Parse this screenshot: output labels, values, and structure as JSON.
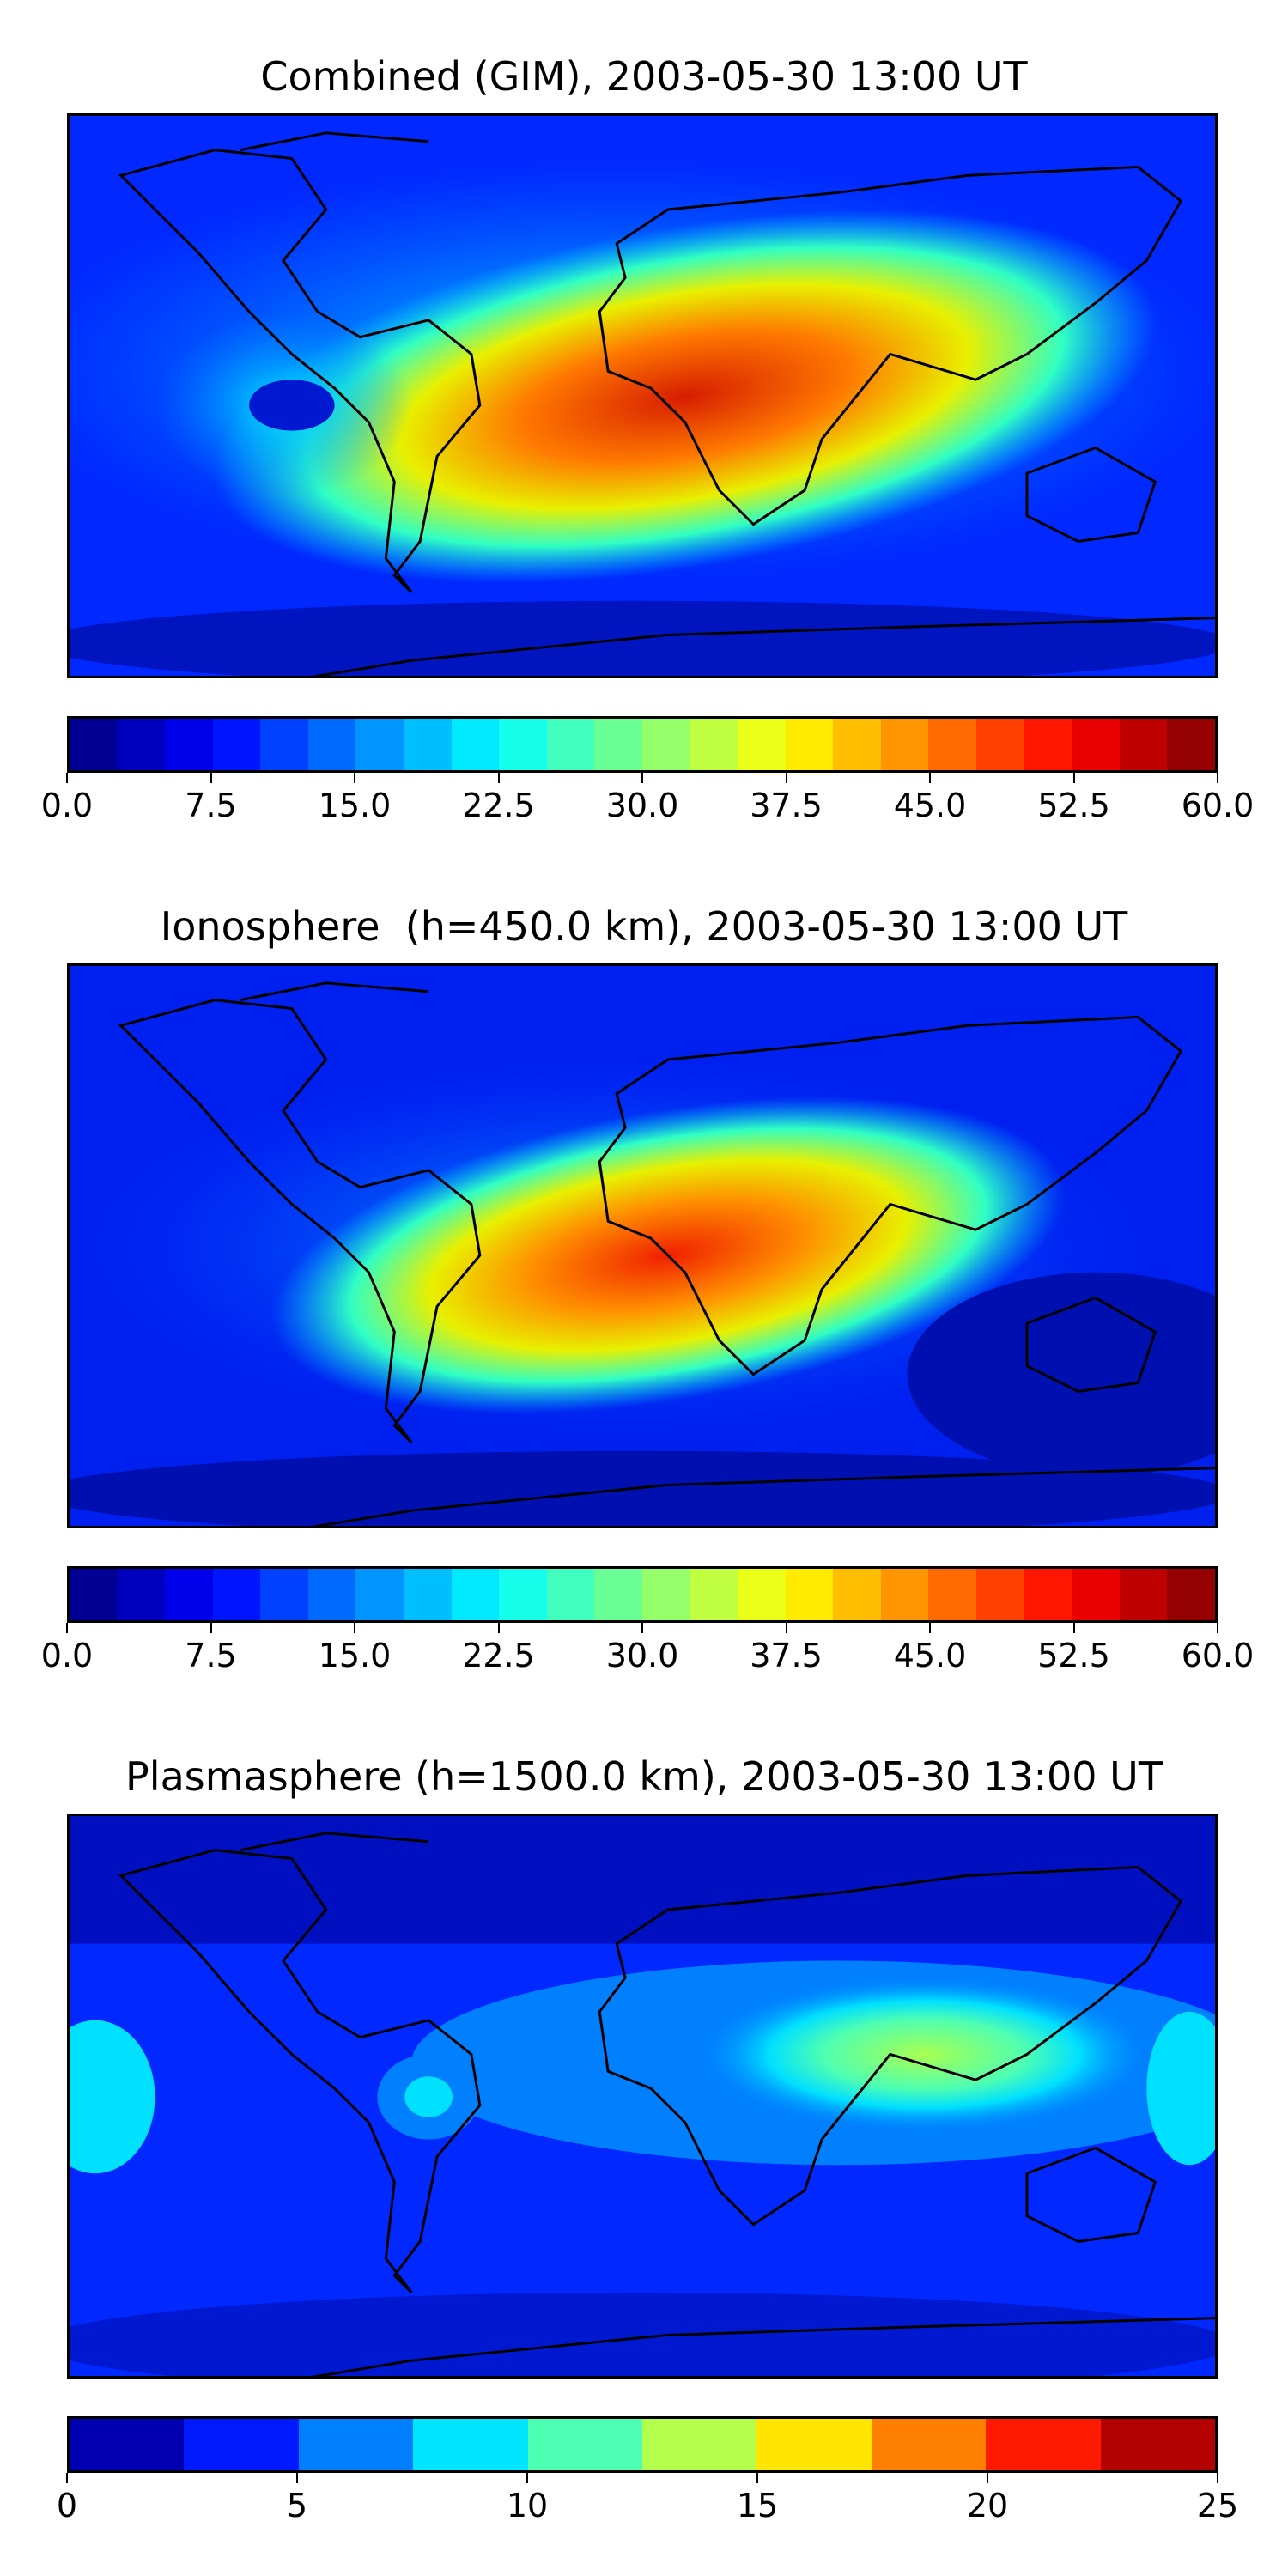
{
  "panels": [
    {
      "title": "Combined (GIM), 2003-05-30 13:00 UT",
      "colorbar": {
        "min": 0,
        "max": 60,
        "n_levels": 24,
        "tick_labels": [
          "0.0",
          "7.5",
          "15.0",
          "22.5",
          "30.0",
          "37.5",
          "45.0",
          "52.5",
          "60.0"
        ]
      }
    },
    {
      "title": "Ionosphere  (h=450.0 km), 2003-05-30 13:00 UT",
      "colorbar": {
        "min": 0,
        "max": 60,
        "n_levels": 24,
        "tick_labels": [
          "0.0",
          "7.5",
          "15.0",
          "22.5",
          "30.0",
          "37.5",
          "45.0",
          "52.5",
          "60.0"
        ]
      }
    },
    {
      "title": "Plasmasphere (h=1500.0 km), 2003-05-30 13:00 UT",
      "colorbar": {
        "min": 0,
        "max": 25,
        "n_levels": 10,
        "tick_labels": [
          "0",
          "5",
          "10",
          "15",
          "20",
          "25"
        ]
      }
    }
  ],
  "colormap": "jet"
}
